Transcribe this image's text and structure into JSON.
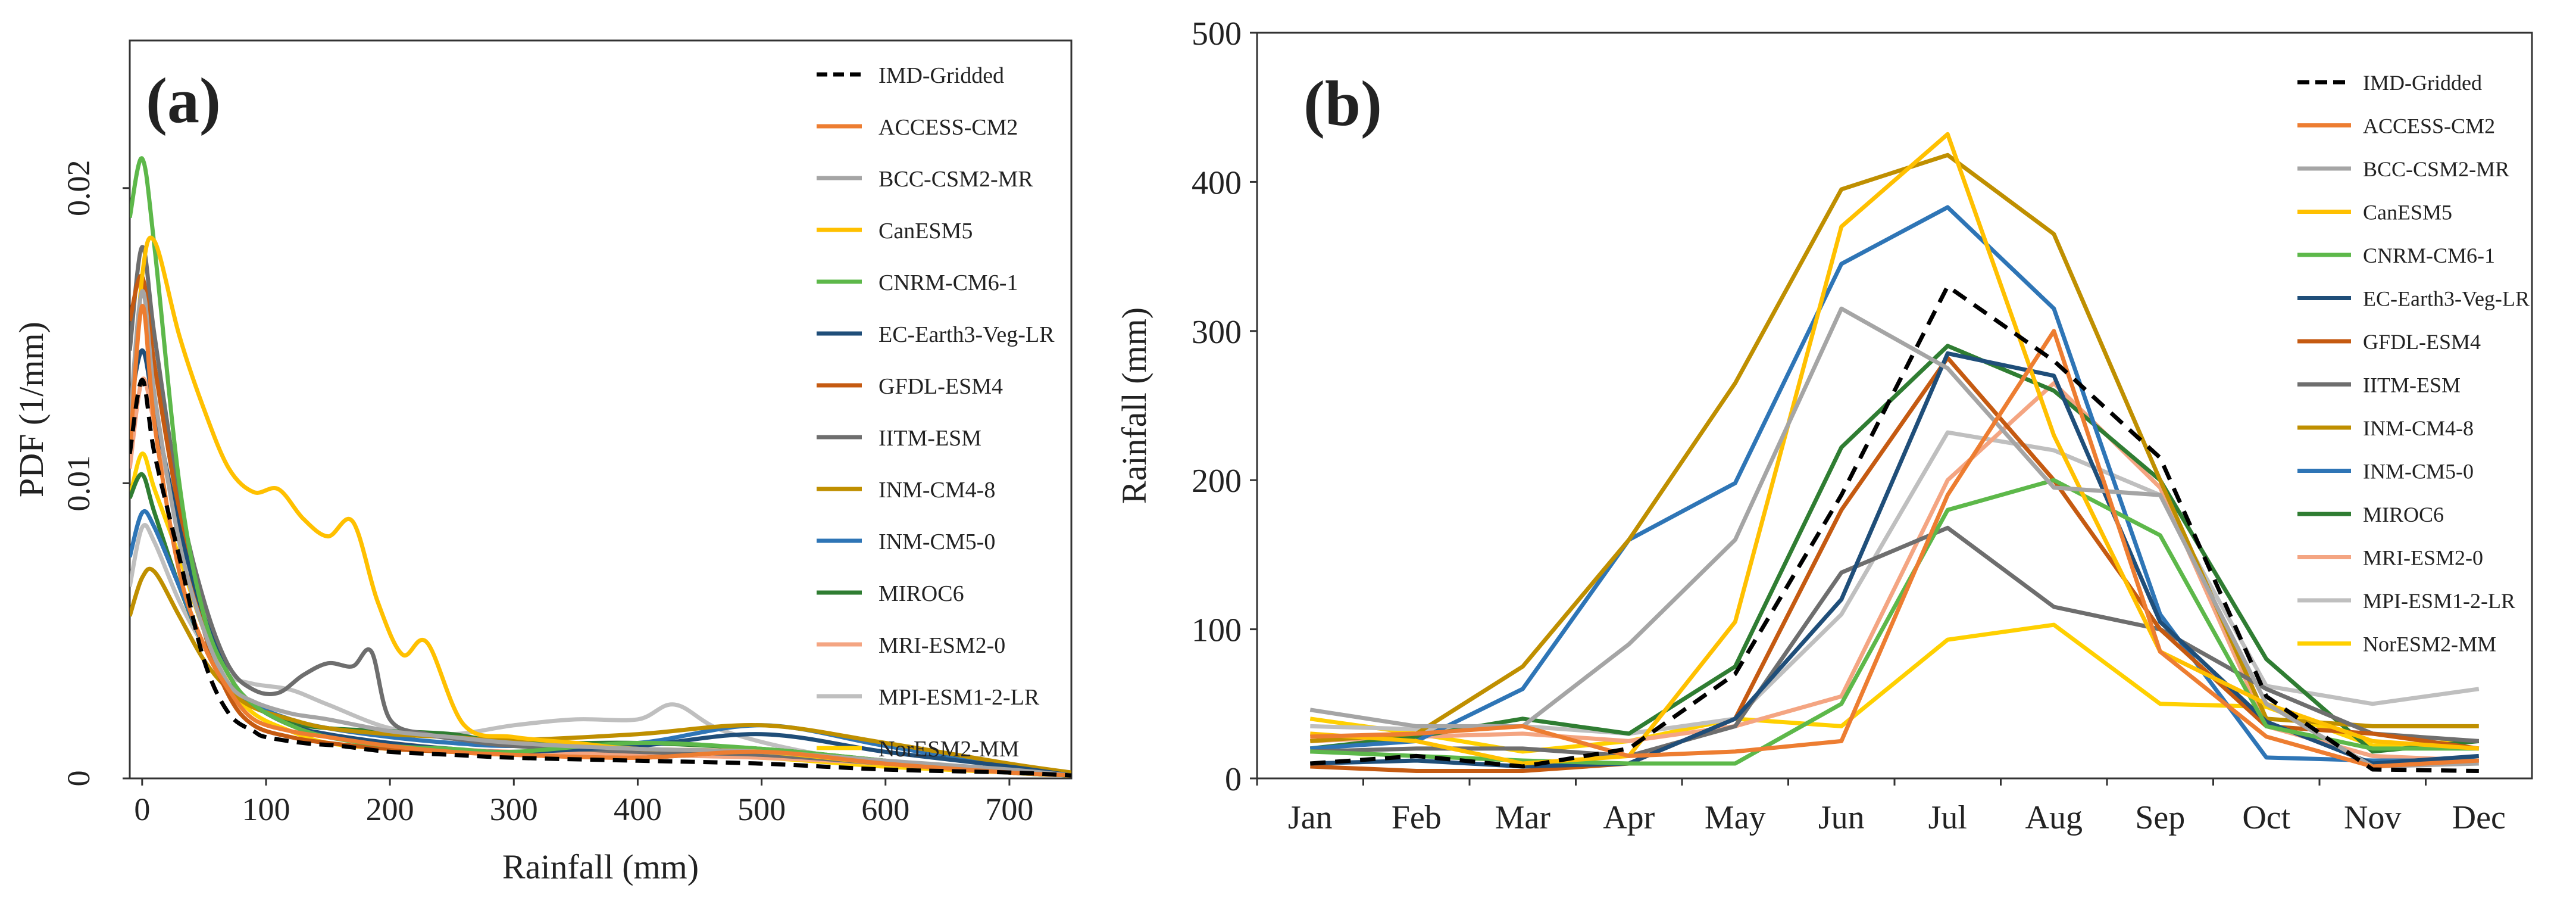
{
  "panels": [
    "(a)",
    "(b)"
  ],
  "chart_data": [
    {
      "type": "line",
      "panel_label": "(a)",
      "xlabel": "Rainfall (mm)",
      "ylabel": "PDF (1/mm)",
      "xlim": [
        -10,
        750
      ],
      "ylim": [
        0,
        0.025
      ],
      "x_ticks": [
        0,
        100,
        200,
        300,
        400,
        500,
        600,
        700
      ],
      "y_ticks": [
        0,
        0.01,
        0.02
      ],
      "y_tick_labels": [
        "0",
        "0.01",
        "0.02"
      ],
      "legend_position": "right",
      "series": [
        {
          "name": "IMD-Gridded",
          "color": "#000000",
          "dash": "dashed",
          "x": [
            -10,
            0,
            10,
            30,
            50,
            70,
            90,
            100,
            130,
            160,
            200,
            250,
            300,
            400,
            500,
            600,
            700,
            750
          ],
          "y": [
            0.011,
            0.0135,
            0.011,
            0.0075,
            0.004,
            0.0022,
            0.0016,
            0.0014,
            0.0012,
            0.0011,
            0.0009,
            0.0008,
            0.0007,
            0.0006,
            0.0005,
            0.0003,
            0.0002,
            0.0001
          ]
        },
        {
          "name": "ACCESS-CM2",
          "color": "#ED7D31",
          "dash": "solid",
          "x": [
            -10,
            0,
            10,
            30,
            50,
            70,
            90,
            120,
            150,
            200,
            250,
            300,
            400,
            500,
            600,
            700,
            750
          ],
          "y": [
            0.011,
            0.016,
            0.012,
            0.007,
            0.0045,
            0.003,
            0.002,
            0.0016,
            0.0014,
            0.0011,
            0.0009,
            0.0008,
            0.0007,
            0.0009,
            0.0005,
            0.0002,
            0.0001
          ]
        },
        {
          "name": "BCC-CSM2-MR",
          "color": "#A5A5A5",
          "dash": "solid",
          "x": [
            -10,
            0,
            10,
            30,
            50,
            70,
            90,
            120,
            150,
            200,
            250,
            300,
            400,
            500,
            600,
            700,
            750
          ],
          "y": [
            0.012,
            0.0165,
            0.013,
            0.008,
            0.005,
            0.0032,
            0.0026,
            0.0022,
            0.002,
            0.0016,
            0.0014,
            0.0012,
            0.001,
            0.0009,
            0.0006,
            0.0003,
            0.0001
          ]
        },
        {
          "name": "CanESM5",
          "color": "#FFC000",
          "dash": "solid",
          "x": [
            -10,
            0,
            10,
            30,
            50,
            70,
            90,
            110,
            130,
            150,
            170,
            190,
            210,
            230,
            260,
            300,
            350,
            400,
            500,
            600,
            700,
            750
          ],
          "y": [
            0.011,
            0.017,
            0.0182,
            0.015,
            0.0125,
            0.0105,
            0.0097,
            0.0098,
            0.0088,
            0.0082,
            0.0087,
            0.006,
            0.0042,
            0.0046,
            0.0018,
            0.0014,
            0.0012,
            0.001,
            0.0009,
            0.0005,
            0.0002,
            0.0001
          ]
        },
        {
          "name": "CNRM-CM6-1",
          "color": "#5DB84A",
          "dash": "solid",
          "x": [
            -10,
            0,
            10,
            30,
            50,
            70,
            90,
            120,
            150,
            200,
            250,
            300,
            400,
            500,
            600,
            700,
            750
          ],
          "y": [
            0.019,
            0.021,
            0.018,
            0.01,
            0.0055,
            0.0035,
            0.0025,
            0.0018,
            0.0014,
            0.0011,
            0.001,
            0.0009,
            0.0012,
            0.001,
            0.0006,
            0.0002,
            0.0001
          ]
        },
        {
          "name": "EC-Earth3-Veg-LR",
          "color": "#1F4E79",
          "dash": "solid",
          "x": [
            -10,
            0,
            10,
            30,
            50,
            70,
            90,
            120,
            150,
            200,
            250,
            300,
            400,
            500,
            600,
            700,
            750
          ],
          "y": [
            0.0125,
            0.0145,
            0.0125,
            0.0085,
            0.0055,
            0.0035,
            0.0025,
            0.0018,
            0.0015,
            0.0012,
            0.001,
            0.0009,
            0.0011,
            0.0015,
            0.0009,
            0.0004,
            0.0001
          ]
        },
        {
          "name": "GFDL-ESM4",
          "color": "#C55A11",
          "dash": "solid",
          "x": [
            -10,
            0,
            10,
            30,
            50,
            70,
            90,
            120,
            150,
            200,
            250,
            300,
            400,
            500,
            600,
            700,
            750
          ],
          "y": [
            0.0155,
            0.017,
            0.014,
            0.009,
            0.005,
            0.0028,
            0.0018,
            0.0014,
            0.0012,
            0.001,
            0.0009,
            0.0008,
            0.0007,
            0.0009,
            0.0005,
            0.0002,
            0.0001
          ]
        },
        {
          "name": "IITM-ESM",
          "color": "#6E6E6E",
          "dash": "solid",
          "x": [
            -10,
            0,
            10,
            30,
            50,
            70,
            90,
            110,
            130,
            150,
            170,
            185,
            200,
            230,
            260,
            300,
            400,
            500,
            600,
            700,
            750
          ],
          "y": [
            0.0145,
            0.018,
            0.015,
            0.0095,
            0.006,
            0.0038,
            0.003,
            0.0029,
            0.0035,
            0.0039,
            0.0038,
            0.0043,
            0.002,
            0.0015,
            0.0013,
            0.0011,
            0.0009,
            0.0008,
            0.0005,
            0.0002,
            0.0001
          ]
        },
        {
          "name": "INM-CM4-8",
          "color": "#BF8F00",
          "dash": "solid",
          "x": [
            -10,
            0,
            10,
            30,
            50,
            70,
            90,
            120,
            150,
            200,
            250,
            300,
            400,
            500,
            600,
            700,
            750
          ],
          "y": [
            0.0055,
            0.0068,
            0.007,
            0.0055,
            0.004,
            0.003,
            0.0024,
            0.002,
            0.0017,
            0.0015,
            0.0014,
            0.0013,
            0.0015,
            0.0018,
            0.0012,
            0.0005,
            0.0002
          ]
        },
        {
          "name": "INM-CM5-0",
          "color": "#2E75B6",
          "dash": "solid",
          "x": [
            -10,
            0,
            10,
            30,
            50,
            70,
            90,
            120,
            150,
            200,
            250,
            300,
            400,
            500,
            600,
            700,
            750
          ],
          "y": [
            0.0075,
            0.009,
            0.0085,
            0.0065,
            0.0045,
            0.0032,
            0.0025,
            0.002,
            0.0017,
            0.0014,
            0.0012,
            0.0011,
            0.0012,
            0.0018,
            0.0011,
            0.0004,
            0.0001
          ]
        },
        {
          "name": "MIROC6",
          "color": "#2F7D32",
          "dash": "solid",
          "x": [
            -10,
            0,
            10,
            30,
            50,
            70,
            90,
            120,
            150,
            200,
            250,
            300,
            400,
            500,
            600,
            700,
            750
          ],
          "y": [
            0.0095,
            0.0103,
            0.009,
            0.0065,
            0.0045,
            0.0032,
            0.0025,
            0.0019,
            0.0017,
            0.0016,
            0.0015,
            0.0012,
            0.0012,
            0.001,
            0.0006,
            0.0002,
            0.0001
          ]
        },
        {
          "name": "MRI-ESM2-0",
          "color": "#F4A582",
          "dash": "solid",
          "x": [
            -10,
            0,
            10,
            30,
            50,
            70,
            90,
            120,
            150,
            200,
            250,
            300,
            400,
            500,
            600,
            700,
            750
          ],
          "y": [
            0.0105,
            0.0135,
            0.012,
            0.0085,
            0.0055,
            0.0035,
            0.0025,
            0.0018,
            0.0014,
            0.0012,
            0.001,
            0.0009,
            0.0008,
            0.0007,
            0.0005,
            0.0002,
            0.0001
          ]
        },
        {
          "name": "MPI-ESM1-2-LR",
          "color": "#BFBFBF",
          "dash": "solid",
          "x": [
            -10,
            0,
            10,
            30,
            50,
            70,
            90,
            120,
            150,
            200,
            250,
            300,
            350,
            400,
            430,
            470,
            550,
            650,
            750
          ],
          "y": [
            0.0065,
            0.0085,
            0.008,
            0.006,
            0.0045,
            0.0035,
            0.0032,
            0.003,
            0.0025,
            0.0017,
            0.0015,
            0.0018,
            0.002,
            0.002,
            0.0025,
            0.0016,
            0.0008,
            0.0004,
            0.0002
          ]
        },
        {
          "name": "NorESM2-MM",
          "color": "#FFD000",
          "dash": "solid",
          "x": [
            -10,
            0,
            10,
            30,
            50,
            70,
            90,
            120,
            150,
            200,
            250,
            300,
            400,
            500,
            600,
            700,
            750
          ],
          "y": [
            0.0095,
            0.011,
            0.0098,
            0.0075,
            0.005,
            0.0032,
            0.0022,
            0.0016,
            0.0012,
            0.001,
            0.0009,
            0.0008,
            0.0008,
            0.0007,
            0.0004,
            0.0002,
            0.0001
          ]
        }
      ]
    },
    {
      "type": "line",
      "panel_label": "(b)",
      "xlabel": "",
      "ylabel": "Rainfall (mm)",
      "ylim": [
        0,
        500
      ],
      "y_ticks": [
        0,
        100,
        200,
        300,
        400,
        500
      ],
      "categories": [
        "Jan",
        "Feb",
        "Mar",
        "Apr",
        "May",
        "Jun",
        "Jul",
        "Aug",
        "Sep",
        "Oct",
        "Nov",
        "Dec"
      ],
      "legend_position": "right",
      "series": [
        {
          "name": "IMD-Gridded",
          "color": "#000000",
          "dash": "dashed",
          "values": [
            10,
            15,
            8,
            20,
            70,
            190,
            330,
            280,
            215,
            55,
            6,
            5
          ]
        },
        {
          "name": "ACCESS-CM2",
          "color": "#ED7D31",
          "dash": "solid",
          "values": [
            28,
            30,
            35,
            15,
            18,
            25,
            190,
            300,
            85,
            28,
            8,
            12
          ]
        },
        {
          "name": "BCC-CSM2-MR",
          "color": "#A5A5A5",
          "dash": "solid",
          "values": [
            46,
            35,
            35,
            90,
            160,
            315,
            275,
            195,
            190,
            50,
            8,
            10
          ]
        },
        {
          "name": "CanESM5",
          "color": "#FFC000",
          "dash": "solid",
          "values": [
            30,
            25,
            10,
            15,
            105,
            370,
            432,
            230,
            85,
            50,
            25,
            20
          ]
        },
        {
          "name": "CNRM-CM6-1",
          "color": "#5DB84A",
          "dash": "solid",
          "values": [
            18,
            15,
            12,
            10,
            10,
            50,
            180,
            200,
            163,
            35,
            20,
            20
          ]
        },
        {
          "name": "EC-Earth3-Veg-LR",
          "color": "#1F4E79",
          "dash": "solid",
          "values": [
            10,
            12,
            8,
            10,
            40,
            120,
            285,
            270,
            105,
            38,
            10,
            15
          ]
        },
        {
          "name": "GFDL-ESM4",
          "color": "#C55A11",
          "dash": "solid",
          "values": [
            8,
            5,
            5,
            10,
            40,
            180,
            282,
            200,
            100,
            35,
            30,
            20
          ]
        },
        {
          "name": "IITM-ESM",
          "color": "#6E6E6E",
          "dash": "solid",
          "values": [
            18,
            20,
            20,
            15,
            35,
            138,
            168,
            115,
            100,
            60,
            30,
            25
          ]
        },
        {
          "name": "INM-CM4-8",
          "color": "#BF8F00",
          "dash": "solid",
          "values": [
            25,
            30,
            75,
            160,
            265,
            395,
            418,
            365,
            200,
            40,
            35,
            35
          ]
        },
        {
          "name": "INM-CM5-0",
          "color": "#2E75B6",
          "dash": "solid",
          "values": [
            20,
            25,
            60,
            160,
            198,
            345,
            383,
            315,
            110,
            14,
            12,
            12
          ]
        },
        {
          "name": "MIROC6",
          "color": "#2F7D32",
          "dash": "solid",
          "values": [
            20,
            28,
            40,
            30,
            75,
            222,
            290,
            260,
            200,
            80,
            18,
            25
          ]
        },
        {
          "name": "MRI-ESM2-0",
          "color": "#F4A582",
          "dash": "solid",
          "values": [
            25,
            28,
            30,
            25,
            35,
            55,
            200,
            265,
            195,
            35,
            15,
            12
          ]
        },
        {
          "name": "MPI-ESM1-2-LR",
          "color": "#BFBFBF",
          "dash": "solid",
          "values": [
            35,
            33,
            35,
            30,
            40,
            110,
            232,
            220,
            190,
            62,
            50,
            60
          ]
        },
        {
          "name": "NorESM2-MM",
          "color": "#FFD000",
          "dash": "solid",
          "values": [
            40,
            30,
            18,
            25,
            40,
            35,
            93,
            103,
            50,
            48,
            22,
            25
          ]
        }
      ]
    }
  ]
}
